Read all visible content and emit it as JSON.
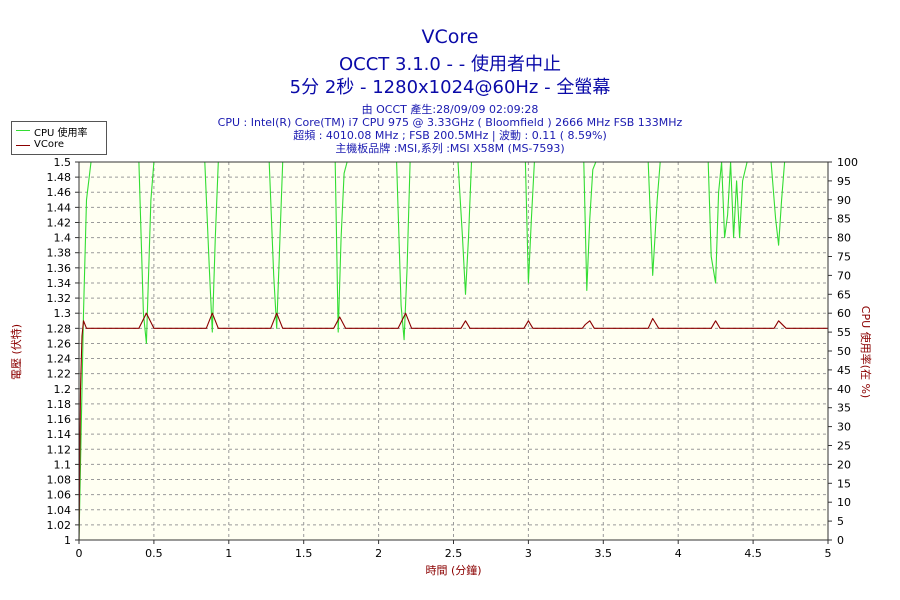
{
  "chart_data": {
    "type": "line",
    "title": "VCore",
    "subtitle_lines": [
      "OCCT 3.1.0 -  - 使用者中止",
      "5分 2秒 - 1280x1024@60Hz - 全螢幕"
    ],
    "info_lines": [
      "由 OCCT 產生:28/09/09 02:09:28",
      "CPU : Intel(R) Core(TM) i7 CPU 975 @ 3.33GHz ( Bloomfield ) 2666 MHz FSB 133MHz",
      "超頻 : 4010.08 MHz ; FSB 200.5MHz | 波動 : 0.11 ( 8.59%)",
      "主機板品牌 :MSI,系列 :MSI X58M (MS-7593)"
    ],
    "xlabel": "時間 (分鐘)",
    "ylabel_left": "電壓 (伏特)",
    "ylabel_right": "CPU 使用率(在 %)",
    "xlim": [
      0,
      5
    ],
    "ylim_left": [
      1,
      1.5
    ],
    "ylim_right": [
      0,
      100
    ],
    "x_ticks": [
      "0",
      "0.5",
      "1",
      "1.5",
      "2",
      "2.5",
      "3",
      "3.5",
      "4",
      "4.5",
      "5"
    ],
    "y_left_ticks": [
      "1",
      "1.02",
      "1.04",
      "1.06",
      "1.08",
      "1.1",
      "1.12",
      "1.14",
      "1.16",
      "1.18",
      "1.2",
      "1.22",
      "1.24",
      "1.26",
      "1.28",
      "1.3",
      "1.32",
      "1.34",
      "1.36",
      "1.38",
      "1.4",
      "1.42",
      "1.44",
      "1.46",
      "1.48",
      "1.5"
    ],
    "y_right_ticks": [
      "0",
      "5",
      "10",
      "15",
      "20",
      "25",
      "30",
      "35",
      "40",
      "45",
      "50",
      "55",
      "60",
      "65",
      "70",
      "75",
      "80",
      "85",
      "90",
      "95",
      "100"
    ],
    "grid": true,
    "legend_position": "top-left",
    "series": [
      {
        "name": "CPU 使用率",
        "axis": "right",
        "color": "#33dd33",
        "x": [
          0,
          0.01,
          0.03,
          0.05,
          0.08,
          0.1,
          0.4,
          0.43,
          0.45,
          0.48,
          0.5,
          0.84,
          0.87,
          0.89,
          0.91,
          0.93,
          1.27,
          1.3,
          1.32,
          1.34,
          1.36,
          1.71,
          1.73,
          1.75,
          1.77,
          1.79,
          2.12,
          2.15,
          2.17,
          2.19,
          2.21,
          2.23,
          2.53,
          2.56,
          2.58,
          2.6,
          2.62,
          2.98,
          3.0,
          3.02,
          3.04,
          3.37,
          3.39,
          3.41,
          3.43,
          3.45,
          3.8,
          3.83,
          3.86,
          3.88,
          4.2,
          4.22,
          4.25,
          4.27,
          4.29,
          4.31,
          4.33,
          4.35,
          4.37,
          4.39,
          4.41,
          4.43,
          4.46,
          4.62,
          4.65,
          4.67,
          4.69,
          4.71,
          4.98,
          5.0
        ],
        "values": [
          0,
          20,
          60,
          90,
          100,
          100,
          100,
          60,
          52,
          90,
          100,
          100,
          72,
          55,
          80,
          100,
          100,
          70,
          56,
          78,
          100,
          100,
          55,
          80,
          97,
          100,
          100,
          62,
          53,
          72,
          100,
          100,
          100,
          80,
          65,
          80,
          100,
          100,
          68,
          85,
          100,
          100,
          66,
          85,
          98,
          100,
          100,
          70,
          90,
          100,
          100,
          75,
          68,
          92,
          100,
          80,
          86,
          100,
          80,
          95,
          80,
          95,
          100,
          100,
          85,
          78,
          90,
          100,
          100,
          100
        ]
      },
      {
        "name": "VCore",
        "axis": "left",
        "color": "#8b0000",
        "x": [
          0,
          0.01,
          0.02,
          0.03,
          0.05,
          0.06,
          0.4,
          0.45,
          0.5,
          0.85,
          0.89,
          0.93,
          1.28,
          1.32,
          1.36,
          1.7,
          1.74,
          1.78,
          2.13,
          2.18,
          2.22,
          2.55,
          2.58,
          2.61,
          2.97,
          3.0,
          3.03,
          3.36,
          3.38,
          3.41,
          3.44,
          3.8,
          3.83,
          3.87,
          4.22,
          4.25,
          4.28,
          4.64,
          4.67,
          4.72,
          5.0
        ],
        "values": [
          1.0,
          1.2,
          1.27,
          1.29,
          1.28,
          1.28,
          1.28,
          1.3,
          1.28,
          1.28,
          1.3,
          1.28,
          1.28,
          1.3,
          1.28,
          1.28,
          1.295,
          1.28,
          1.28,
          1.3,
          1.28,
          1.28,
          1.29,
          1.28,
          1.28,
          1.29,
          1.28,
          1.28,
          1.285,
          1.29,
          1.28,
          1.28,
          1.293,
          1.28,
          1.28,
          1.29,
          1.28,
          1.28,
          1.29,
          1.28,
          1.28
        ]
      }
    ]
  }
}
